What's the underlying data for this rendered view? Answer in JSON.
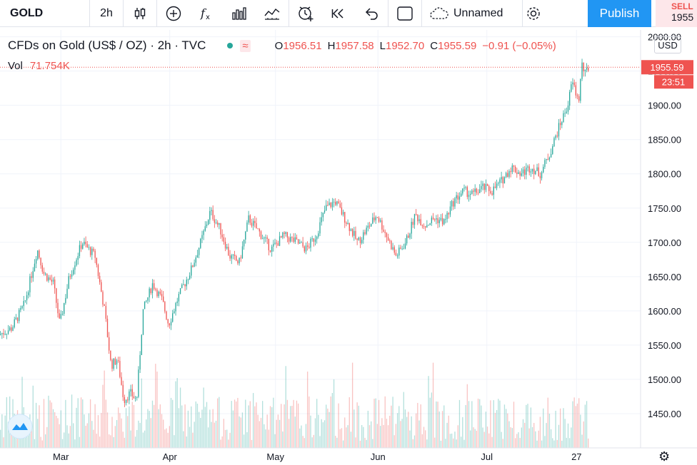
{
  "toolbar": {
    "symbol": "GOLD",
    "interval": "2h",
    "layout_name": "Unnamed",
    "publish_label": "Publish",
    "icons": [
      "candles-icon",
      "add-indicator-icon",
      "fx-icon",
      "bar-chart-icon",
      "compare-icon",
      "alert-icon",
      "replay-icon",
      "undo-icon",
      "fullscreen-icon",
      "cloud-icon",
      "gear-icon"
    ]
  },
  "sell": {
    "label": "SELL",
    "price": "1955"
  },
  "legend": {
    "title": "CFDs on Gold (US$ / OZ) · 2h · TVC",
    "wave": "≈",
    "open_label": "O",
    "open": "1956.51",
    "high_label": "H",
    "high": "1957.58",
    "low_label": "L",
    "low": "1952.70",
    "close_label": "C",
    "close": "1955.59",
    "change": "−0.91 (−0.05%)",
    "vol_label": "Vol",
    "vol_value": "71.754K"
  },
  "currency": "USD",
  "colors": {
    "up": "#26a69a",
    "down": "#ef5350",
    "accent": "#2196f3",
    "grid": "#f0f3fa"
  },
  "chart_data": {
    "type": "candlestick",
    "title": "CFDs on Gold (US$ / OZ) · 2h · TVC",
    "ylim": [
      1400,
      2010
    ],
    "y_ticks": [
      1450,
      1500,
      1550,
      1600,
      1650,
      1700,
      1750,
      1800,
      1850,
      1900,
      1950,
      2000
    ],
    "x_ticks": [
      {
        "label": "Mar",
        "t": 0.095
      },
      {
        "label": "Apr",
        "t": 0.265
      },
      {
        "label": "May",
        "t": 0.43
      },
      {
        "label": "Jun",
        "t": 0.59
      },
      {
        "label": "Jul",
        "t": 0.76
      },
      {
        "label": "27",
        "t": 0.9
      }
    ],
    "last_price": "1955.59",
    "countdown": "23:51",
    "price_path": [
      [
        0.0,
        1565
      ],
      [
        0.02,
        1575
      ],
      [
        0.04,
        1610
      ],
      [
        0.06,
        1690
      ],
      [
        0.07,
        1655
      ],
      [
        0.085,
        1640
      ],
      [
        0.095,
        1580
      ],
      [
        0.11,
        1650
      ],
      [
        0.13,
        1700
      ],
      [
        0.15,
        1680
      ],
      [
        0.165,
        1600
      ],
      [
        0.175,
        1520
      ],
      [
        0.185,
        1530
      ],
      [
        0.195,
        1470
      ],
      [
        0.205,
        1480
      ],
      [
        0.215,
        1470
      ],
      [
        0.225,
        1600
      ],
      [
        0.24,
        1640
      ],
      [
        0.255,
        1615
      ],
      [
        0.265,
        1580
      ],
      [
        0.28,
        1620
      ],
      [
        0.3,
        1660
      ],
      [
        0.315,
        1700
      ],
      [
        0.33,
        1745
      ],
      [
        0.345,
        1720
      ],
      [
        0.36,
        1680
      ],
      [
        0.375,
        1670
      ],
      [
        0.39,
        1735
      ],
      [
        0.41,
        1710
      ],
      [
        0.425,
        1690
      ],
      [
        0.445,
        1710
      ],
      [
        0.465,
        1700
      ],
      [
        0.48,
        1690
      ],
      [
        0.495,
        1710
      ],
      [
        0.51,
        1750
      ],
      [
        0.525,
        1760
      ],
      [
        0.54,
        1735
      ],
      [
        0.56,
        1700
      ],
      [
        0.575,
        1720
      ],
      [
        0.59,
        1740
      ],
      [
        0.605,
        1710
      ],
      [
        0.62,
        1680
      ],
      [
        0.635,
        1700
      ],
      [
        0.65,
        1740
      ],
      [
        0.665,
        1725
      ],
      [
        0.68,
        1735
      ],
      [
        0.695,
        1730
      ],
      [
        0.71,
        1760
      ],
      [
        0.725,
        1775
      ],
      [
        0.74,
        1770
      ],
      [
        0.755,
        1780
      ],
      [
        0.77,
        1775
      ],
      [
        0.785,
        1790
      ],
      [
        0.8,
        1810
      ],
      [
        0.815,
        1800
      ],
      [
        0.83,
        1810
      ],
      [
        0.845,
        1800
      ],
      [
        0.86,
        1830
      ],
      [
        0.875,
        1870
      ],
      [
        0.888,
        1900
      ],
      [
        0.895,
        1935
      ],
      [
        0.905,
        1905
      ],
      [
        0.91,
        1960
      ],
      [
        0.915,
        1945
      ],
      [
        0.92,
        1955
      ]
    ]
  }
}
